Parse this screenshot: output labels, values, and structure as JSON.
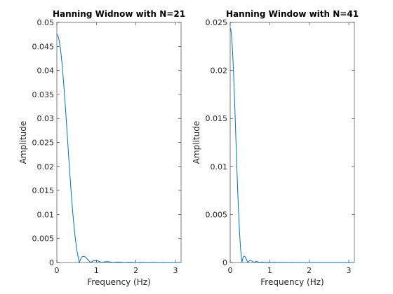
{
  "chart_data": [
    {
      "type": "line",
      "title": "Hanning Widnow with N=21",
      "xlabel": "Frequency (Hz)",
      "ylabel": "Amplitude",
      "xlim": [
        0,
        3.1416
      ],
      "ylim": [
        0,
        0.05
      ],
      "grid": false,
      "x_ticks": [
        0,
        1,
        2,
        3
      ],
      "x_tick_labels": [
        "0",
        "1",
        "2",
        "3"
      ],
      "y_ticks": [
        0,
        0.005,
        0.01,
        0.015,
        0.02,
        0.025,
        0.03,
        0.035,
        0.04,
        0.045,
        0.05
      ],
      "y_tick_labels": [
        "0",
        "0.005",
        "0.01",
        "0.015",
        "0.02",
        "0.025",
        "0.03",
        "0.035",
        "0.04",
        "0.045",
        "0.05"
      ],
      "line_color": "#0072BD",
      "window_length": 21,
      "peak": 0.0475
    },
    {
      "type": "line",
      "title": "Hanning Window with N=41",
      "xlabel": "Frequency (Hz)",
      "ylabel": "Amplitude",
      "xlim": [
        0,
        3.1416
      ],
      "ylim": [
        0,
        0.025
      ],
      "grid": false,
      "x_ticks": [
        0,
        1,
        2,
        3
      ],
      "x_tick_labels": [
        "0",
        "1",
        "2",
        "3"
      ],
      "y_ticks": [
        0,
        0.005,
        0.01,
        0.015,
        0.02,
        0.025
      ],
      "y_tick_labels": [
        "0",
        "0.005",
        "0.01",
        "0.015",
        "0.02",
        "0.025"
      ],
      "line_color": "#0072BD",
      "window_length": 41,
      "peak": 0.0244
    }
  ]
}
